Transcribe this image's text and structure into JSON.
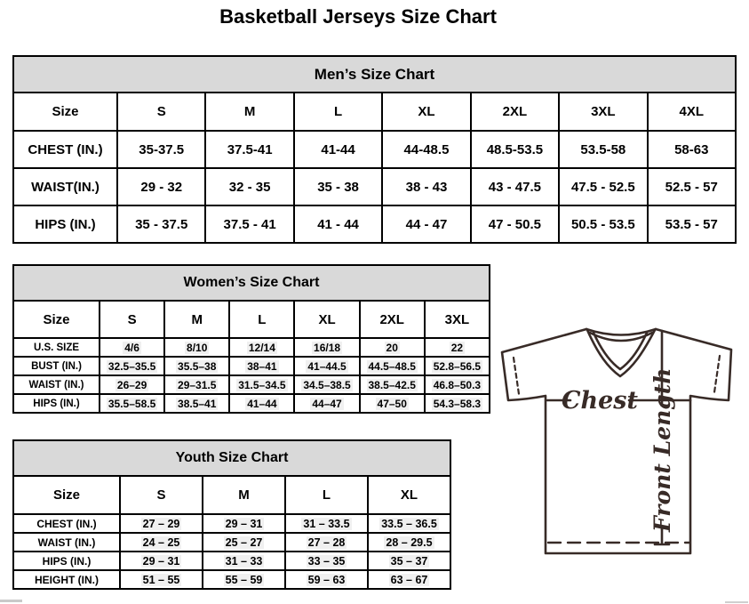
{
  "page": {
    "title": "Basketball Jerseys Size Chart"
  },
  "tables": {
    "men": {
      "title": "Men’s Size Chart",
      "columns": [
        "Size",
        "S",
        "M",
        "L",
        "XL",
        "2XL",
        "3XL",
        "4XL"
      ],
      "highlight": false,
      "rows": [
        {
          "label": "CHEST (IN.)",
          "values": [
            "35-37.5",
            "37.5-41",
            "41-44",
            "44-48.5",
            "48.5-53.5",
            "53.5-58",
            "58-63"
          ]
        },
        {
          "label": "WAIST(IN.)",
          "values": [
            "29 - 32",
            "32 - 35",
            "35 - 38",
            "38 - 43",
            "43 - 47.5",
            "47.5 - 52.5",
            "52.5 - 57"
          ]
        },
        {
          "label": "HIPS (IN.)",
          "values": [
            "35 - 37.5",
            "37.5 - 41",
            "41 - 44",
            "44 - 47",
            "47 - 50.5",
            "50.5 - 53.5",
            "53.5 - 57"
          ]
        }
      ]
    },
    "women": {
      "title": "Women’s Size Chart",
      "columns": [
        "Size",
        "S",
        "M",
        "L",
        "XL",
        "2XL",
        "3XL"
      ],
      "highlight": true,
      "rows": [
        {
          "label": "U.S. SIZE",
          "values": [
            "4/6",
            "8/10",
            "12/14",
            "16/18",
            "20",
            "22"
          ]
        },
        {
          "label": "BUST (IN.)",
          "values": [
            "32.5–35.5",
            "35.5–38",
            "38–41",
            "41–44.5",
            "44.5–48.5",
            "52.8–56.5"
          ]
        },
        {
          "label": "WAIST (IN.)",
          "values": [
            "26–29",
            "29–31.5",
            "31.5–34.5",
            "34.5–38.5",
            "38.5–42.5",
            "46.8–50.3"
          ]
        },
        {
          "label": "HIPS (IN.)",
          "values": [
            "35.5–58.5",
            "38.5–41",
            "41–44",
            "44–47",
            "47–50",
            "54.3–58.3"
          ]
        }
      ]
    },
    "youth": {
      "title": "Youth Size Chart",
      "columns": [
        "Size",
        "S",
        "M",
        "L",
        "XL"
      ],
      "highlight": true,
      "rows": [
        {
          "label": "CHEST (IN.)",
          "values": [
            "27 – 29",
            "29 – 31",
            "31 – 33.5",
            "33.5 – 36.5"
          ]
        },
        {
          "label": "WAIST (IN.)",
          "values": [
            "24 – 25",
            "25 – 27",
            "27 – 28",
            "28 – 29.5"
          ]
        },
        {
          "label": "HIPS (IN.)",
          "values": [
            "29 – 31",
            "31 – 33",
            "33 – 35",
            "35 – 37"
          ]
        },
        {
          "label": "HEIGHT (IN.)",
          "values": [
            "51 – 55",
            "55 – 59",
            "59 – 63",
            "63 – 67"
          ]
        }
      ]
    }
  },
  "diagram": {
    "chest_label": "Chest",
    "front_length_label": "Front Length",
    "line_color": "#382b27"
  },
  "colors": {
    "header_band": "#d9d9d9",
    "table_border": "#000000",
    "value_highlight": "#f0f0f0"
  }
}
